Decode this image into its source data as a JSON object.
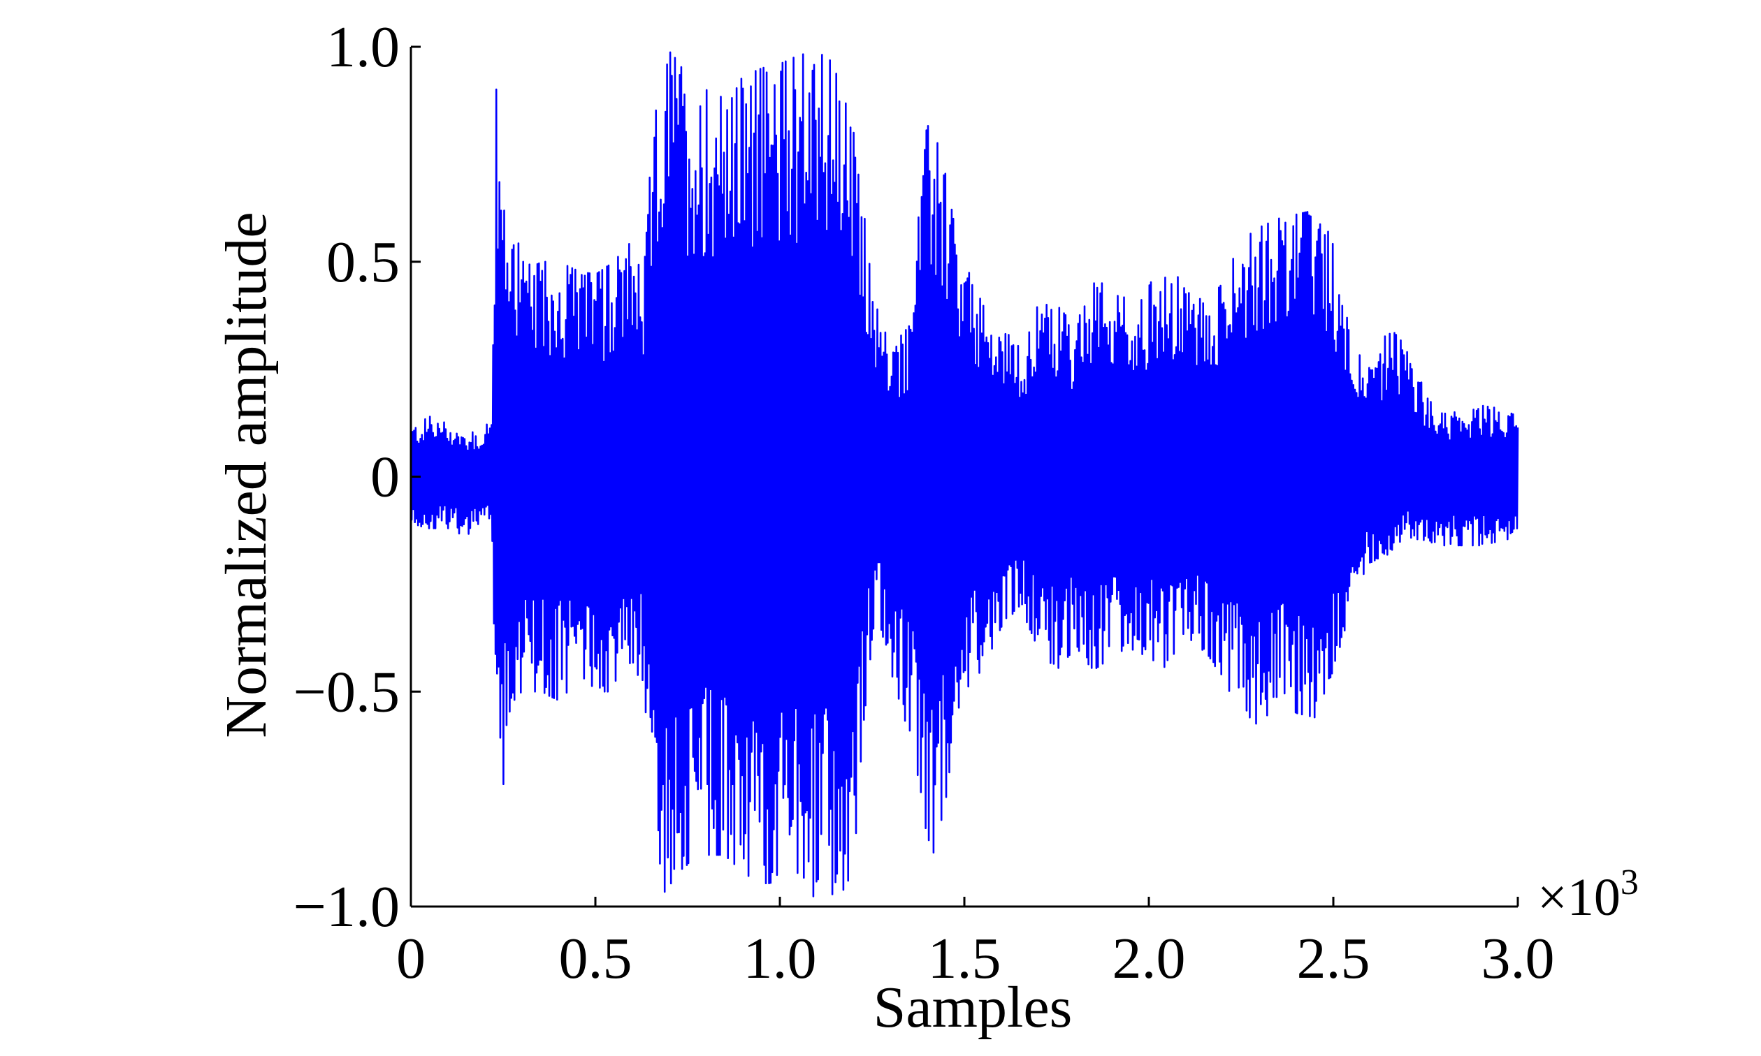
{
  "chart_data": {
    "type": "line",
    "title": "",
    "xlabel": "Samples",
    "ylabel": "Normalized amplitude",
    "x_multiplier": "×10",
    "x_multiplier_exponent": "3",
    "xlim": [
      0,
      3.0
    ],
    "ylim": [
      -1.0,
      1.0
    ],
    "x_ticks": [
      0,
      0.5,
      1.0,
      1.5,
      2.0,
      2.5,
      3.0
    ],
    "x_tick_labels": [
      "0",
      "0.5",
      "1.0",
      "1.5",
      "2.0",
      "2.5",
      "3.0"
    ],
    "y_ticks": [
      -1.0,
      -0.5,
      0,
      0.5,
      1.0
    ],
    "y_tick_labels": [
      "−1.0",
      "−0.5",
      "0",
      "0.5",
      "1.0"
    ],
    "grid": false,
    "legend": "none",
    "series_color": "#0000ff",
    "envelope": {
      "x": [
        0,
        0.05,
        0.1,
        0.15,
        0.2,
        0.22,
        0.23,
        0.25,
        0.28,
        0.3,
        0.35,
        0.4,
        0.45,
        0.5,
        0.55,
        0.6,
        0.63,
        0.65,
        0.68,
        0.7,
        0.72,
        0.75,
        0.8,
        0.85,
        0.9,
        0.95,
        1.0,
        1.05,
        1.1,
        1.15,
        1.2,
        1.23,
        1.26,
        1.3,
        1.35,
        1.38,
        1.4,
        1.42,
        1.45,
        1.48,
        1.5,
        1.55,
        1.6,
        1.65,
        1.7,
        1.75,
        1.8,
        1.85,
        1.9,
        1.95,
        2.0,
        2.05,
        2.1,
        2.15,
        2.2,
        2.25,
        2.3,
        2.35,
        2.4,
        2.45,
        2.5,
        2.55,
        2.6,
        2.65,
        2.7,
        2.75,
        2.8,
        2.85,
        2.9,
        2.95,
        3.0
      ],
      "upper": [
        0.12,
        0.14,
        0.13,
        0.1,
        0.11,
        0.15,
        0.92,
        0.65,
        0.6,
        0.5,
        0.5,
        0.5,
        0.48,
        0.47,
        0.5,
        0.55,
        0.45,
        0.75,
        0.98,
        0.99,
        0.97,
        0.93,
        0.9,
        0.88,
        0.93,
        0.95,
        0.96,
        0.98,
        0.99,
        0.96,
        0.8,
        0.6,
        0.4,
        0.3,
        0.35,
        0.7,
        0.83,
        0.8,
        0.7,
        0.55,
        0.5,
        0.4,
        0.35,
        0.3,
        0.4,
        0.4,
        0.35,
        0.45,
        0.45,
        0.4,
        0.45,
        0.47,
        0.46,
        0.4,
        0.45,
        0.55,
        0.58,
        0.6,
        0.61,
        0.62,
        0.55,
        0.35,
        0.25,
        0.35,
        0.3,
        0.2,
        0.15,
        0.15,
        0.17,
        0.16,
        0.14
      ],
      "lower": [
        -0.12,
        -0.12,
        -0.12,
        -0.14,
        -0.1,
        -0.12,
        -0.6,
        -0.72,
        -0.52,
        -0.5,
        -0.5,
        -0.52,
        -0.48,
        -0.5,
        -0.5,
        -0.45,
        -0.5,
        -0.65,
        -0.95,
        -0.99,
        -0.95,
        -0.9,
        -0.88,
        -0.88,
        -0.92,
        -0.95,
        -0.94,
        -0.96,
        -0.98,
        -0.97,
        -0.95,
        -0.55,
        -0.3,
        -0.45,
        -0.6,
        -0.72,
        -0.85,
        -0.88,
        -0.75,
        -0.55,
        -0.5,
        -0.45,
        -0.35,
        -0.3,
        -0.4,
        -0.45,
        -0.4,
        -0.45,
        -0.42,
        -0.4,
        -0.42,
        -0.45,
        -0.43,
        -0.4,
        -0.47,
        -0.55,
        -0.58,
        -0.52,
        -0.55,
        -0.56,
        -0.45,
        -0.3,
        -0.2,
        -0.18,
        -0.14,
        -0.15,
        -0.16,
        -0.16,
        -0.16,
        -0.15,
        -0.14
      ]
    }
  }
}
